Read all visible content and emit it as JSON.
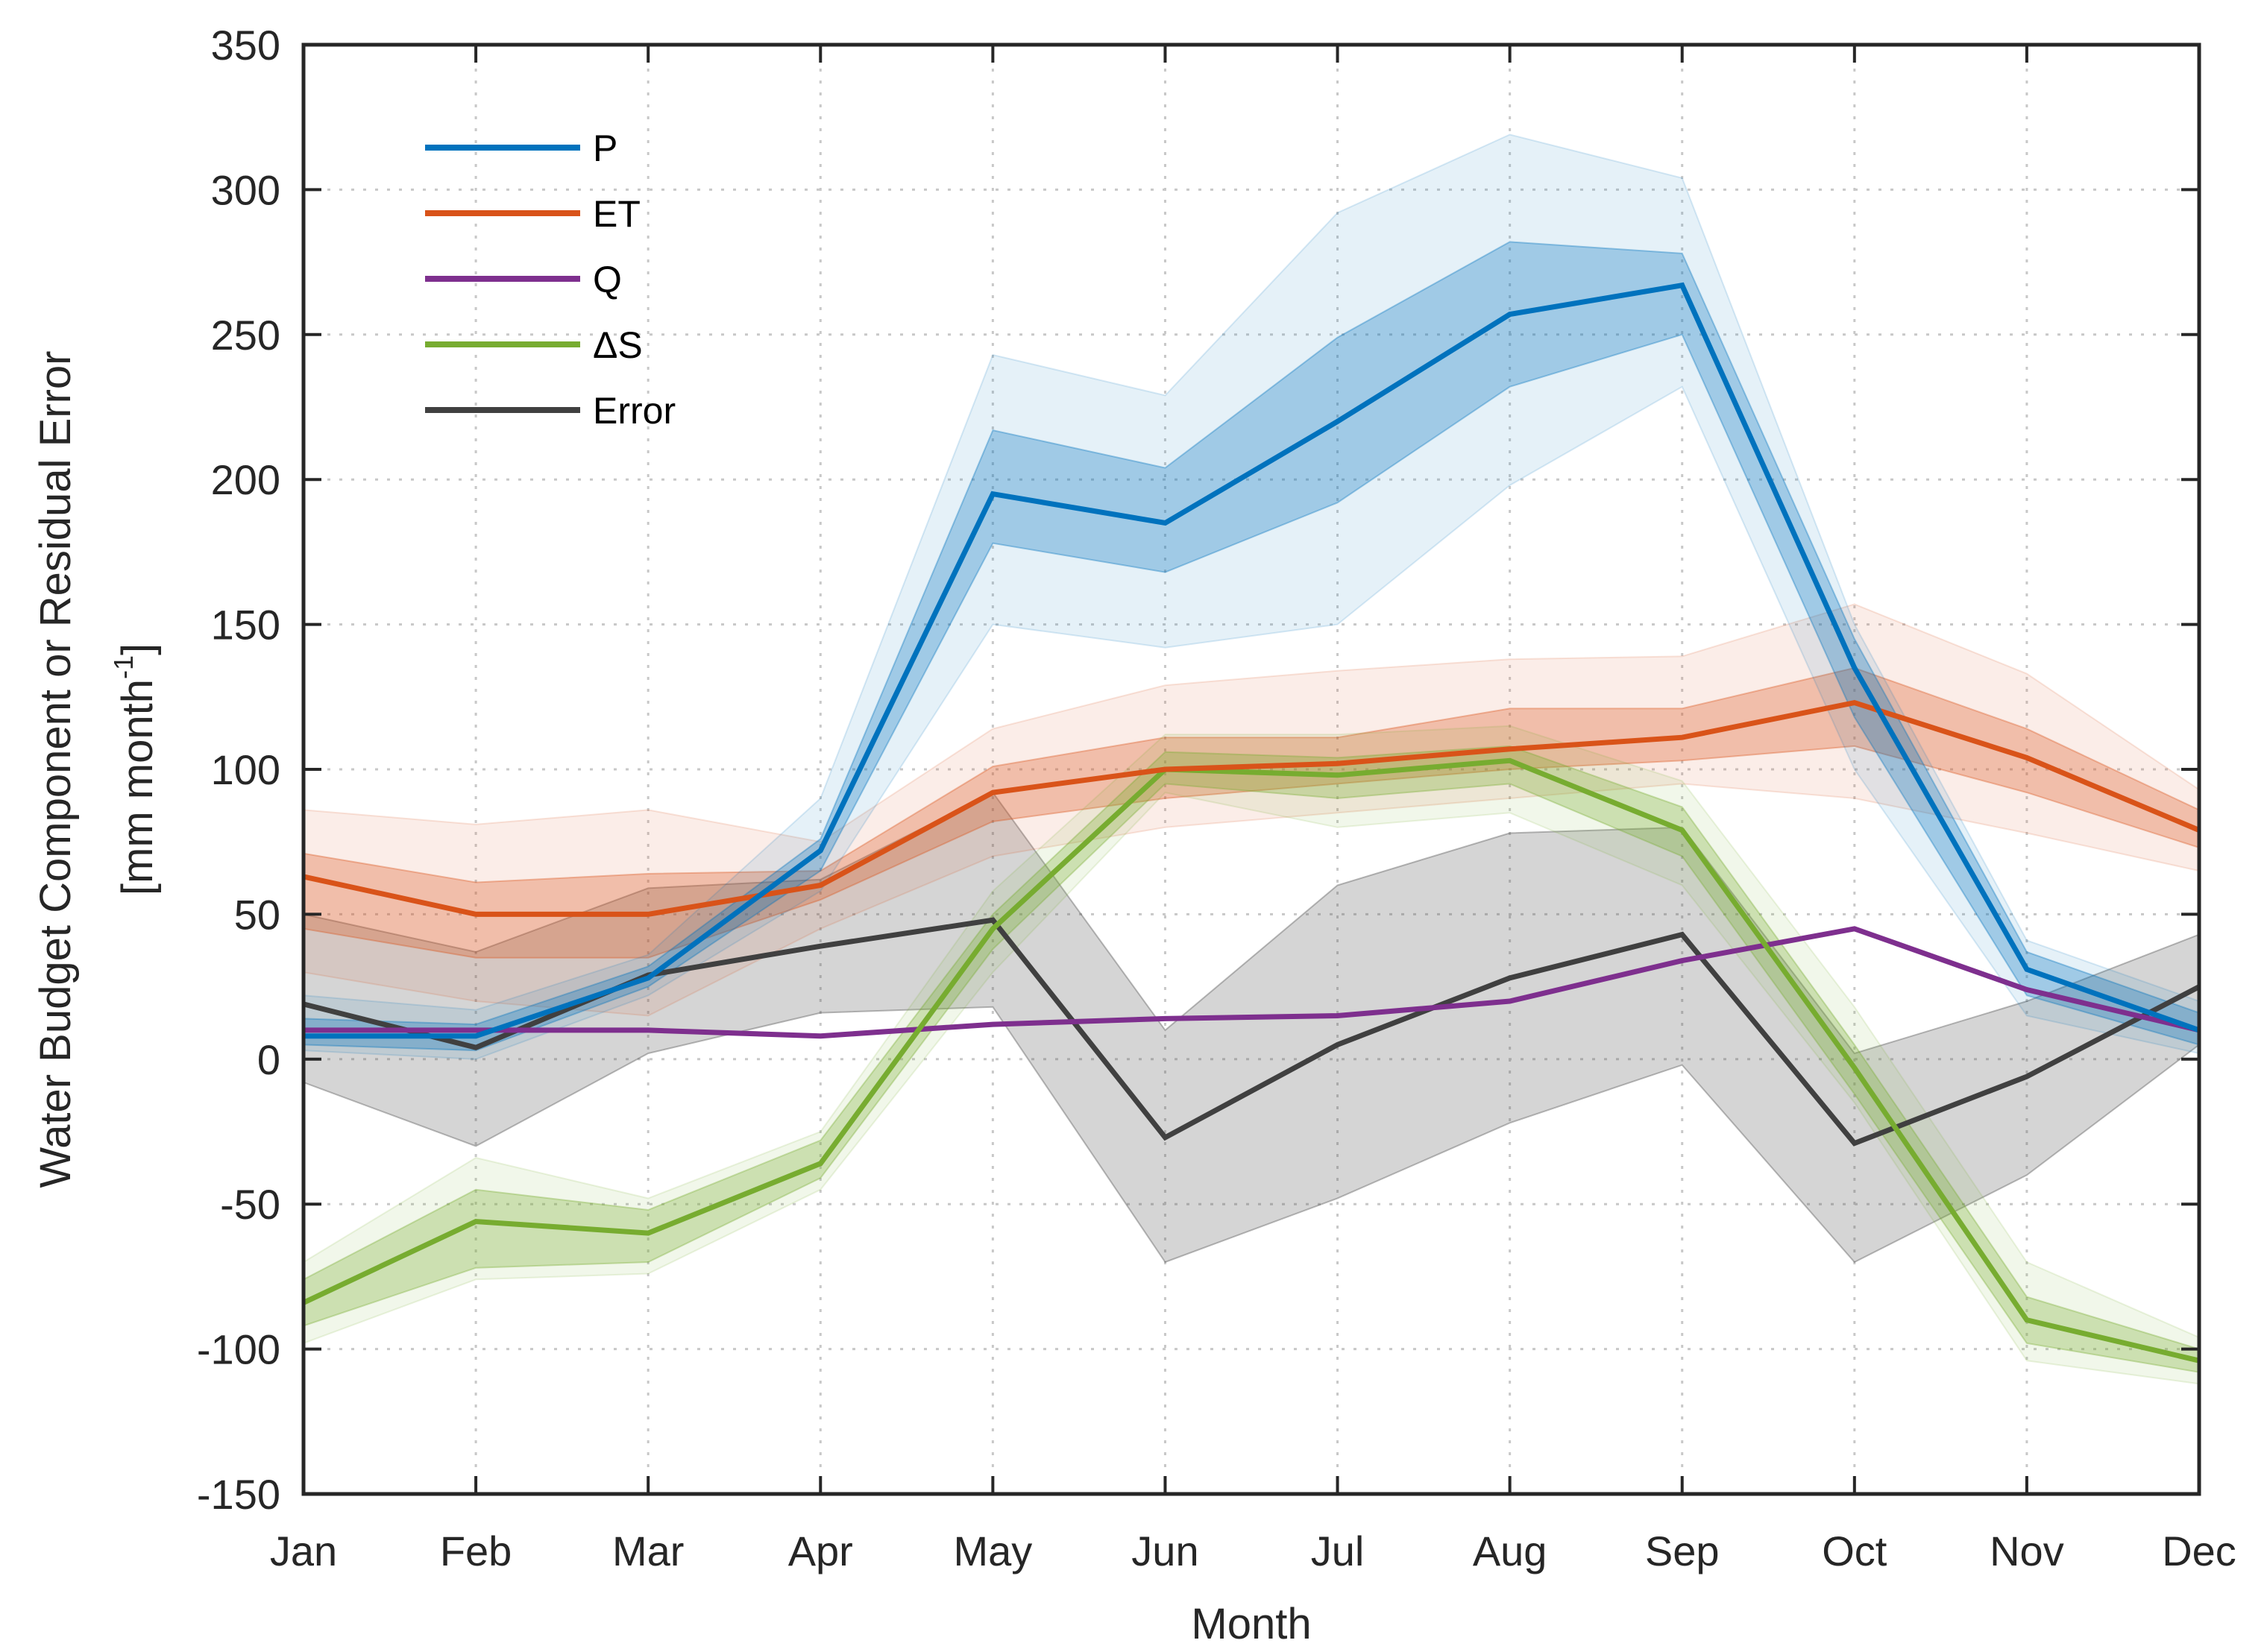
{
  "chart_data": {
    "type": "line",
    "title": "",
    "xlabel": "Month",
    "ylabel_line1": "Water Budget Component or Residual Error",
    "ylabel_line2_prefix": "[mm month",
    "ylabel_line2_sup": "-1",
    "ylabel_line2_suffix": "]",
    "categories": [
      "Jan",
      "Feb",
      "Mar",
      "Apr",
      "May",
      "Jun",
      "Jul",
      "Aug",
      "Sep",
      "Oct",
      "Nov",
      "Dec"
    ],
    "ylim": [
      -150,
      350
    ],
    "yticks": [
      -150,
      -100,
      -50,
      0,
      50,
      100,
      150,
      200,
      250,
      300,
      350
    ],
    "ytick_labels": [
      "-150",
      "-100",
      "-50",
      "0",
      "50",
      "100",
      "150",
      "200",
      "250",
      "300",
      "350"
    ],
    "grid": true,
    "legend_position": "top-left",
    "series": [
      {
        "name": "P",
        "color": "#0072bd",
        "values": [
          8,
          8,
          28,
          72,
          195,
          185,
          220,
          257,
          267,
          135,
          31,
          10
        ],
        "inner_band": {
          "lower": [
            5,
            3,
            25,
            65,
            178,
            168,
            192,
            232,
            250,
            118,
            22,
            5
          ],
          "upper": [
            14,
            12,
            32,
            76,
            217,
            204,
            249,
            282,
            278,
            145,
            37,
            16
          ]
        },
        "outer_band": {
          "lower": [
            3,
            0,
            22,
            58,
            150,
            142,
            150,
            198,
            232,
            100,
            15,
            2
          ],
          "upper": [
            22,
            17,
            36,
            90,
            243,
            229,
            292,
            319,
            304,
            150,
            41,
            20
          ]
        }
      },
      {
        "name": "ET",
        "color": "#d95319",
        "values": [
          63,
          50,
          50,
          60,
          92,
          100,
          102,
          107,
          111,
          123,
          104,
          79
        ],
        "inner_band": {
          "lower": [
            45,
            35,
            35,
            55,
            82,
            90,
            95,
            100,
            103,
            108,
            92,
            73
          ],
          "upper": [
            71,
            61,
            64,
            65,
            101,
            111,
            111,
            121,
            121,
            135,
            114,
            86
          ]
        },
        "outer_band": {
          "lower": [
            30,
            20,
            15,
            45,
            70,
            80,
            85,
            90,
            95,
            90,
            78,
            65
          ],
          "upper": [
            86,
            81,
            86,
            75,
            114,
            129,
            134,
            138,
            139,
            157,
            133,
            93
          ]
        }
      },
      {
        "name": "Q",
        "color": "#7e2f8e",
        "values": [
          10,
          10,
          10,
          8,
          12,
          14,
          15,
          20,
          34,
          45,
          24,
          10
        ]
      },
      {
        "name": "ΔS",
        "color": "#77ac30",
        "values": [
          -84,
          -56,
          -60,
          -36,
          45,
          100,
          98,
          103,
          79,
          -3,
          -90,
          -104
        ],
        "inner_band": {
          "lower": [
            -92,
            -72,
            -70,
            -41,
            38,
            95,
            90,
            95,
            70,
            -12,
            -98,
            -108
          ],
          "upper": [
            -76,
            -45,
            -52,
            -28,
            50,
            106,
            104,
            108,
            87,
            5,
            -82,
            -100
          ]
        },
        "outer_band": {
          "lower": [
            -98,
            -76,
            -74,
            -45,
            30,
            92,
            80,
            85,
            60,
            -15,
            -104,
            -112
          ],
          "upper": [
            -70,
            -34,
            -48,
            -25,
            58,
            112,
            112,
            115,
            96,
            18,
            -70,
            -96
          ]
        }
      },
      {
        "name": "Error",
        "color": "#404040",
        "values": [
          19,
          4,
          29,
          39,
          48,
          -27,
          5,
          28,
          43,
          -29,
          -6,
          25
        ],
        "inner_band": {
          "lower": [
            -8,
            -30,
            2,
            16,
            18,
            -70,
            -48,
            -22,
            -2,
            -70,
            -40,
            5
          ],
          "upper": [
            50,
            37,
            59,
            62,
            92,
            10,
            60,
            78,
            80,
            2,
            20,
            43
          ]
        }
      }
    ]
  }
}
